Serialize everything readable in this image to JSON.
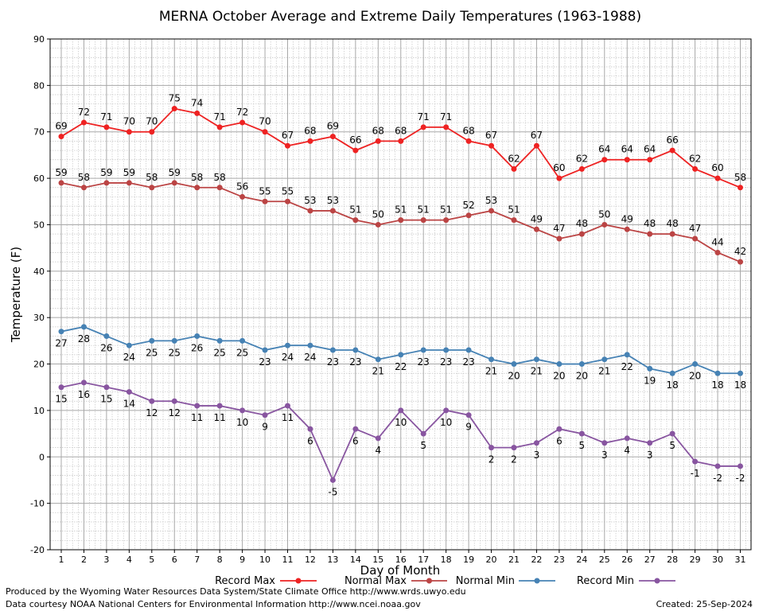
{
  "chart_data": {
    "type": "line",
    "title": "MERNA October Average and Extreme Daily Temperatures (1963-1988)",
    "xlabel": "Day of Month",
    "ylabel": "Temperature (F)",
    "ylim": [
      -20,
      90
    ],
    "yticks": [
      -20,
      -10,
      0,
      10,
      20,
      30,
      40,
      50,
      60,
      70,
      80,
      90
    ],
    "x": [
      1,
      2,
      3,
      4,
      5,
      6,
      7,
      8,
      9,
      10,
      11,
      12,
      13,
      14,
      15,
      16,
      17,
      18,
      19,
      20,
      21,
      22,
      23,
      24,
      25,
      26,
      27,
      28,
      29,
      30,
      31
    ],
    "grid": true,
    "legend_position": "bottom",
    "series": [
      {
        "name": "Record Max",
        "color": "#ee2222",
        "values": [
          69,
          72,
          71,
          70,
          70,
          75,
          74,
          71,
          72,
          70,
          67,
          68,
          69,
          66,
          68,
          68,
          71,
          71,
          68,
          67,
          62,
          67,
          60,
          62,
          64,
          64,
          64,
          66,
          62,
          60,
          58
        ]
      },
      {
        "name": "Normal Max",
        "color": "#bb4444",
        "values": [
          59,
          58,
          59,
          59,
          58,
          59,
          58,
          58,
          56,
          55,
          55,
          53,
          53,
          51,
          50,
          51,
          51,
          51,
          52,
          53,
          51,
          49,
          47,
          48,
          50,
          49,
          48,
          48,
          47,
          44,
          42
        ]
      },
      {
        "name": "Normal Min",
        "color": "#4682b4",
        "values": [
          27,
          28,
          26,
          24,
          25,
          25,
          26,
          25,
          25,
          23,
          24,
          24,
          23,
          23,
          21,
          22,
          23,
          23,
          23,
          21,
          20,
          21,
          20,
          20,
          21,
          22,
          19,
          18,
          20,
          18,
          18
        ]
      },
      {
        "name": "Record Min",
        "color": "#8855a0",
        "values": [
          15,
          16,
          15,
          14,
          12,
          12,
          11,
          11,
          10,
          9,
          11,
          6,
          -5,
          6,
          4,
          10,
          5,
          10,
          9,
          2,
          2,
          3,
          6,
          5,
          3,
          4,
          3,
          5,
          -1,
          -2,
          -2
        ]
      }
    ]
  },
  "footer": {
    "line1": "Produced by the Wyoming Water Resources Data System/State Climate Office http://www.wrds.uwyo.edu",
    "line2": "Data courtesy NOAA National Centers for Environmental Information http://www.ncei.noaa.gov",
    "created": "Created:  25-Sep-2024"
  }
}
